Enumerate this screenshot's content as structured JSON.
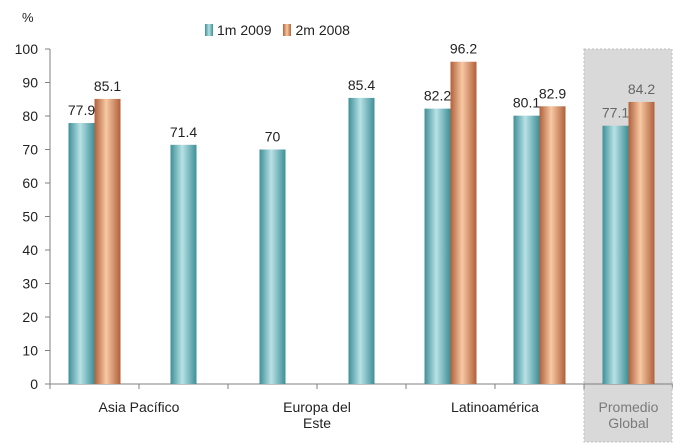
{
  "chart_data": {
    "type": "bar",
    "y_unit": "%",
    "ylim": [
      0,
      100
    ],
    "yticks": [
      0,
      10,
      20,
      30,
      40,
      50,
      60,
      70,
      80,
      90,
      100
    ],
    "grid": false,
    "legend_position": "top",
    "series": [
      {
        "name": "1m 2009",
        "color": "#7dc3c8"
      },
      {
        "name": "2m 2008",
        "color": "#e8a06f"
      }
    ],
    "slots": [
      {
        "id": "asia-pacifico-a",
        "values": [
          77.9,
          85.1
        ],
        "labels": [
          "77.9",
          "85.1"
        ]
      },
      {
        "id": "asia-pacifico-b",
        "values": [
          71.4,
          null
        ],
        "labels": [
          "71.4",
          ""
        ]
      },
      {
        "id": "europa-del-este-a",
        "values": [
          70,
          null
        ],
        "labels": [
          "70",
          ""
        ]
      },
      {
        "id": "europa-del-este-b",
        "values": [
          85.4,
          null
        ],
        "labels": [
          "85.4",
          ""
        ]
      },
      {
        "id": "latinoamerica-a",
        "values": [
          82.2,
          96.2
        ],
        "labels": [
          "82.2",
          "96.2"
        ]
      },
      {
        "id": "latinoamerica-b",
        "values": [
          80.1,
          82.9
        ],
        "labels": [
          "80.1",
          "82.9"
        ]
      },
      {
        "id": "promedio-global",
        "values": [
          77.1,
          84.2
        ],
        "labels": [
          "77.1",
          "84.2"
        ],
        "highlighted": true
      }
    ],
    "categories": [
      {
        "label": "Asia Pacífico",
        "lines": [
          "Asia Pacífico"
        ]
      },
      {
        "label": "Europa del Este",
        "lines": [
          "Europa del",
          "Este"
        ]
      },
      {
        "label": "Latinoamérica",
        "lines": [
          "Latinoamérica"
        ]
      },
      {
        "label": "Promedio Global",
        "lines": [
          "Promedio",
          "Global"
        ],
        "muted": true
      }
    ]
  }
}
